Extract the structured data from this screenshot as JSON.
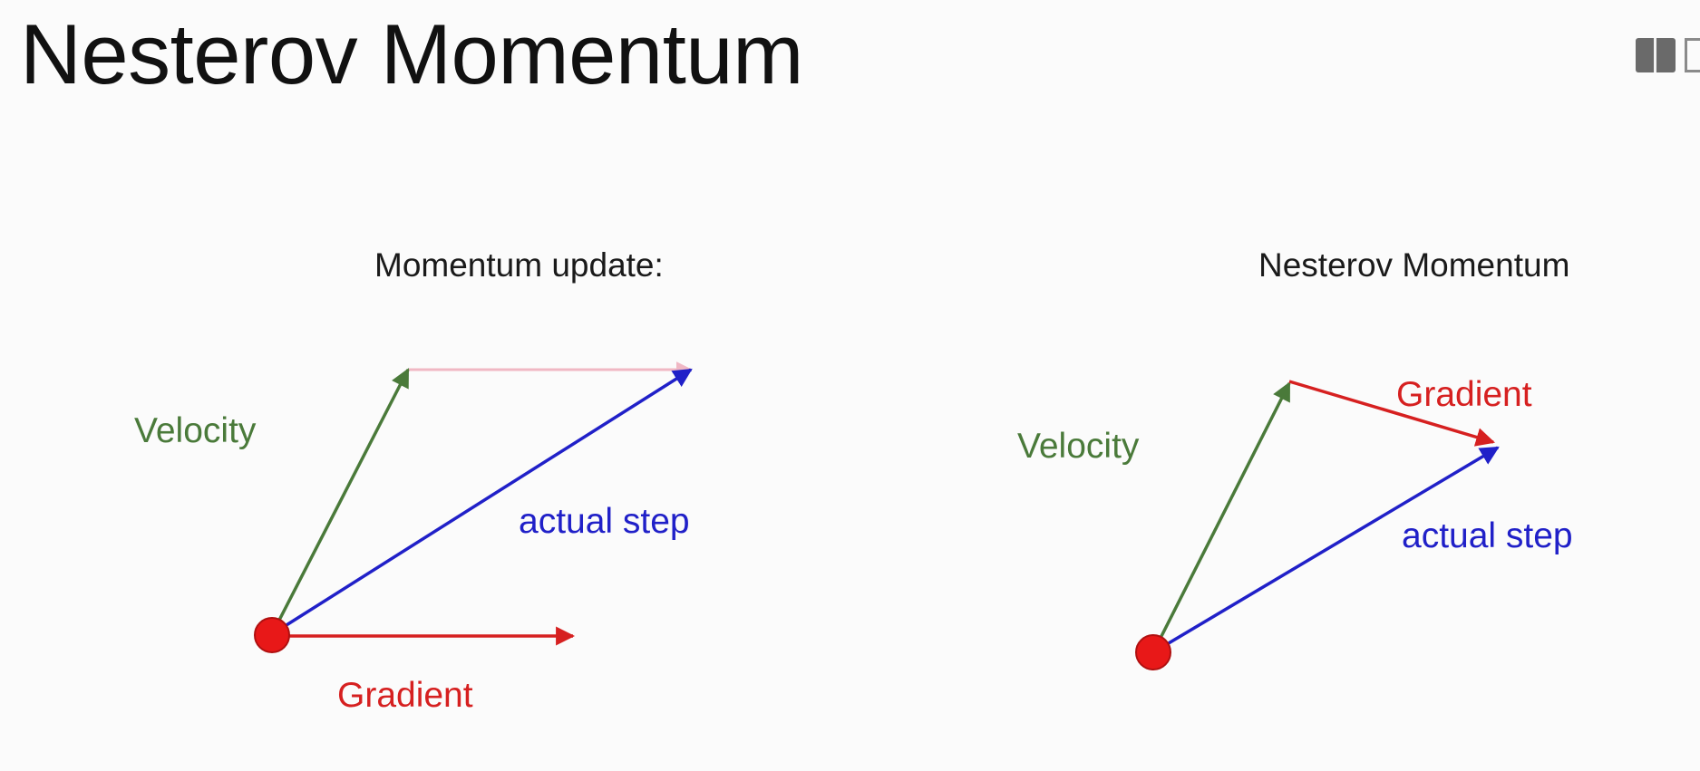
{
  "slide": {
    "title": "Nesterov Momentum"
  },
  "left_diagram": {
    "subtitle": "Momentum update:",
    "labels": {
      "velocity": "Velocity",
      "actual_step": "actual step",
      "gradient": "Gradient"
    }
  },
  "right_diagram": {
    "subtitle": "Nesterov Momentum",
    "labels": {
      "velocity": "Velocity",
      "gradient": "Gradient",
      "actual_step": "actual step"
    }
  },
  "colors": {
    "velocity": "#4a7a3a",
    "gradient": "#d62020",
    "actual_step": "#2020c8",
    "faded_gradient": "#f0b8c4",
    "point_fill": "#e81818",
    "point_stroke": "#b01010"
  },
  "icons": {
    "corner": "book-icon"
  }
}
